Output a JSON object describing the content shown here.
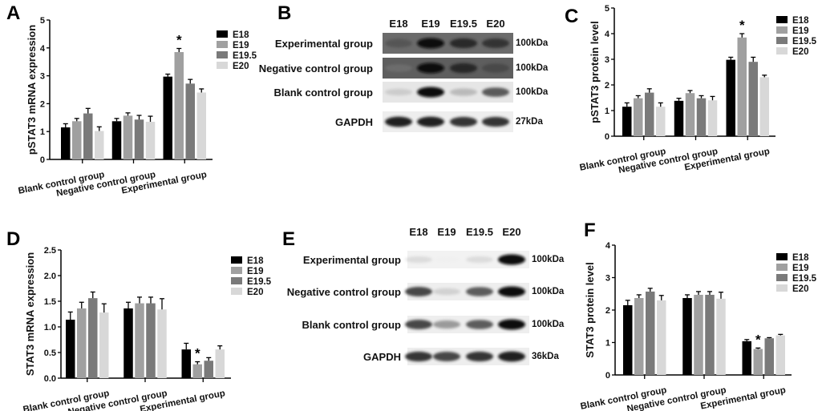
{
  "colors": {
    "E18": "#000000",
    "E19": "#a0a0a0",
    "E19.5": "#7a7a7a",
    "E20": "#d8d8d8"
  },
  "chart_data": [
    {
      "panel": "A",
      "type": "bar",
      "ylabel": "pSTAT3 mRNA expression",
      "categories": [
        "Blank control group",
        "Negative control group",
        "Experimental group"
      ],
      "ylim": [
        0,
        5
      ],
      "yticks": [
        "0",
        "1",
        "2",
        "3",
        "4",
        "5"
      ],
      "legend": "right",
      "series": [
        {
          "name": "E18",
          "values": [
            1.15,
            1.37,
            2.97
          ],
          "errors": [
            0.13,
            0.1,
            0.09
          ]
        },
        {
          "name": "E19",
          "values": [
            1.37,
            1.57,
            3.85
          ],
          "errors": [
            0.1,
            0.1,
            0.13
          ]
        },
        {
          "name": "E19.5",
          "values": [
            1.65,
            1.43,
            2.72
          ],
          "errors": [
            0.18,
            0.15,
            0.15
          ]
        },
        {
          "name": "E20",
          "values": [
            1.02,
            1.35,
            2.4
          ],
          "errors": [
            0.15,
            0.2,
            0.13
          ]
        }
      ],
      "annotations": [
        {
          "text": "*",
          "category": "Experimental group",
          "series": "E19"
        }
      ]
    },
    {
      "panel": "C",
      "type": "bar",
      "ylabel": "pSTAT3 protein level",
      "categories": [
        "Blank control group",
        "Negative control group",
        "Experimental group"
      ],
      "ylim": [
        0,
        5
      ],
      "yticks": [
        "0",
        "1",
        "2",
        "3",
        "4",
        "5"
      ],
      "legend": "right",
      "series": [
        {
          "name": "E18",
          "values": [
            1.15,
            1.38,
            2.98
          ],
          "errors": [
            0.15,
            0.1,
            0.1
          ]
        },
        {
          "name": "E19",
          "values": [
            1.48,
            1.68,
            3.85
          ],
          "errors": [
            0.1,
            0.1,
            0.15
          ]
        },
        {
          "name": "E19.5",
          "values": [
            1.7,
            1.48,
            2.9
          ],
          "errors": [
            0.15,
            0.1,
            0.18
          ]
        },
        {
          "name": "E20",
          "values": [
            1.15,
            1.4,
            2.3
          ],
          "errors": [
            0.15,
            0.15,
            0.08
          ]
        }
      ],
      "annotations": [
        {
          "text": "*",
          "category": "Experimental group",
          "series": "E19"
        }
      ]
    },
    {
      "panel": "D",
      "type": "bar",
      "ylabel": "STAT3 mRNA expression",
      "categories": [
        "Blank control group",
        "Negative control group",
        "Experimental group"
      ],
      "ylim": [
        0,
        2.5
      ],
      "yticks": [
        "0.0",
        "0.5",
        "1.0",
        "1.5",
        "2.0",
        "2.5"
      ],
      "legend": "right",
      "series": [
        {
          "name": "E18",
          "values": [
            1.14,
            1.36,
            0.56
          ],
          "errors": [
            0.15,
            0.12,
            0.12
          ]
        },
        {
          "name": "E19",
          "values": [
            1.36,
            1.46,
            0.27
          ],
          "errors": [
            0.12,
            0.12,
            0.05
          ]
        },
        {
          "name": "E19.5",
          "values": [
            1.56,
            1.46,
            0.34
          ],
          "errors": [
            0.12,
            0.12,
            0.06
          ]
        },
        {
          "name": "E20",
          "values": [
            1.28,
            1.34,
            0.56
          ],
          "errors": [
            0.17,
            0.21,
            0.07
          ]
        }
      ],
      "annotations": [
        {
          "text": "*",
          "category": "Experimental group",
          "series": "E19"
        }
      ]
    },
    {
      "panel": "F",
      "type": "bar",
      "ylabel": "STAT3 protein level",
      "categories": [
        "Blank control group",
        "Negative control group",
        "Experimental group"
      ],
      "ylim": [
        0,
        4
      ],
      "yticks": [
        "0",
        "1",
        "2",
        "3",
        "4"
      ],
      "legend": "right",
      "series": [
        {
          "name": "E18",
          "values": [
            2.15,
            2.37,
            1.04
          ],
          "errors": [
            0.15,
            0.1,
            0.05
          ]
        },
        {
          "name": "E19",
          "values": [
            2.37,
            2.47,
            0.8
          ],
          "errors": [
            0.1,
            0.1,
            0.03
          ]
        },
        {
          "name": "E19.5",
          "values": [
            2.57,
            2.47,
            1.13
          ],
          "errors": [
            0.1,
            0.1,
            0.02
          ]
        },
        {
          "name": "E20",
          "values": [
            2.3,
            2.35,
            1.22
          ],
          "errors": [
            0.15,
            0.2,
            0.03
          ]
        }
      ],
      "annotations": [
        {
          "text": "*",
          "category": "Experimental group",
          "series": "E19"
        }
      ]
    }
  ],
  "blots": [
    {
      "panel": "B",
      "lanes": [
        "E18",
        "E19",
        "E19.5",
        "E20"
      ],
      "rows": [
        {
          "label": "Experimental group",
          "kda": "100kDa",
          "background": "#6b6b6b",
          "intensity": [
            0.7,
            1.0,
            0.9,
            0.85
          ]
        },
        {
          "label": "Negative control group",
          "kda": "100kDa",
          "background": "#5e5e5e",
          "intensity": [
            0.5,
            1.0,
            0.9,
            0.75
          ]
        },
        {
          "label": "Blank control group",
          "kda": "100kDa",
          "background": "#e6e6e6",
          "intensity": [
            0.35,
            1.0,
            0.45,
            0.8
          ]
        },
        {
          "label": "GAPDH",
          "kda": "27kDa",
          "background": "#eeeeee",
          "intensity": [
            0.95,
            0.95,
            0.9,
            0.9
          ]
        }
      ]
    },
    {
      "panel": "E",
      "lanes": [
        "E18",
        "E19",
        "E19.5",
        "E20"
      ],
      "rows": [
        {
          "label": "Experimental group",
          "kda": "100kDa",
          "background": "#f2f2f2",
          "intensity": [
            0.3,
            0.03,
            0.3,
            1.0
          ]
        },
        {
          "label": "Negative control group",
          "kda": "100kDa",
          "background": "#eeeeee",
          "intensity": [
            0.85,
            0.35,
            0.8,
            1.0
          ]
        },
        {
          "label": "Blank control group",
          "kda": "100kDa",
          "background": "#eeeeee",
          "intensity": [
            0.85,
            0.6,
            0.8,
            1.0
          ]
        },
        {
          "label": "GAPDH",
          "kda": "36kDa",
          "background": "#eeeeee",
          "intensity": [
            0.9,
            0.85,
            0.9,
            0.95
          ]
        }
      ]
    }
  ]
}
